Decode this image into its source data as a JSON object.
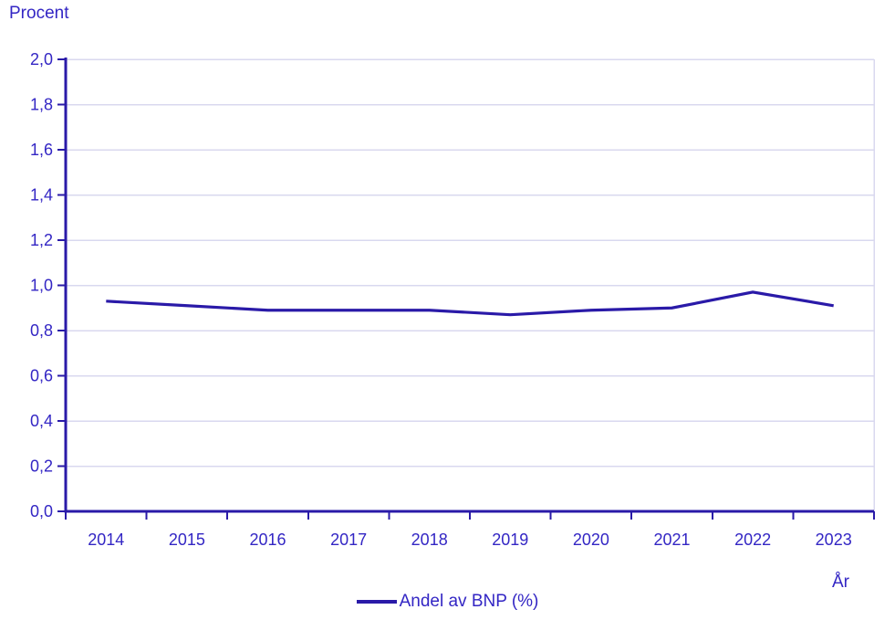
{
  "chart_data": {
    "type": "line",
    "title": "",
    "y_axis_title": "Procent",
    "x_axis_title": "År",
    "categories": [
      "2014",
      "2015",
      "2016",
      "2017",
      "2018",
      "2019",
      "2020",
      "2021",
      "2022",
      "2023"
    ],
    "series": [
      {
        "name": "Andel av BNP (%)",
        "values": [
          0.93,
          0.91,
          0.89,
          0.89,
          0.89,
          0.87,
          0.89,
          0.9,
          0.97,
          0.91
        ]
      }
    ],
    "ylim": [
      0.0,
      2.0
    ],
    "y_tick_step": 0.2,
    "y_tick_labels": [
      "0,0",
      "0,2",
      "0,4",
      "0,6",
      "0,8",
      "1,0",
      "1,2",
      "1,4",
      "1,6",
      "1,8",
      "2,0"
    ],
    "grid": "horizontal",
    "legend_position": "bottom-center",
    "legend": {
      "label": "Andel av BNP (%)"
    },
    "colors": {
      "line": "#2a1aa8",
      "axis": "#2a1aa8",
      "text": "#3326c4",
      "gridline": "#d9d8ef",
      "background": "#ffffff"
    }
  }
}
